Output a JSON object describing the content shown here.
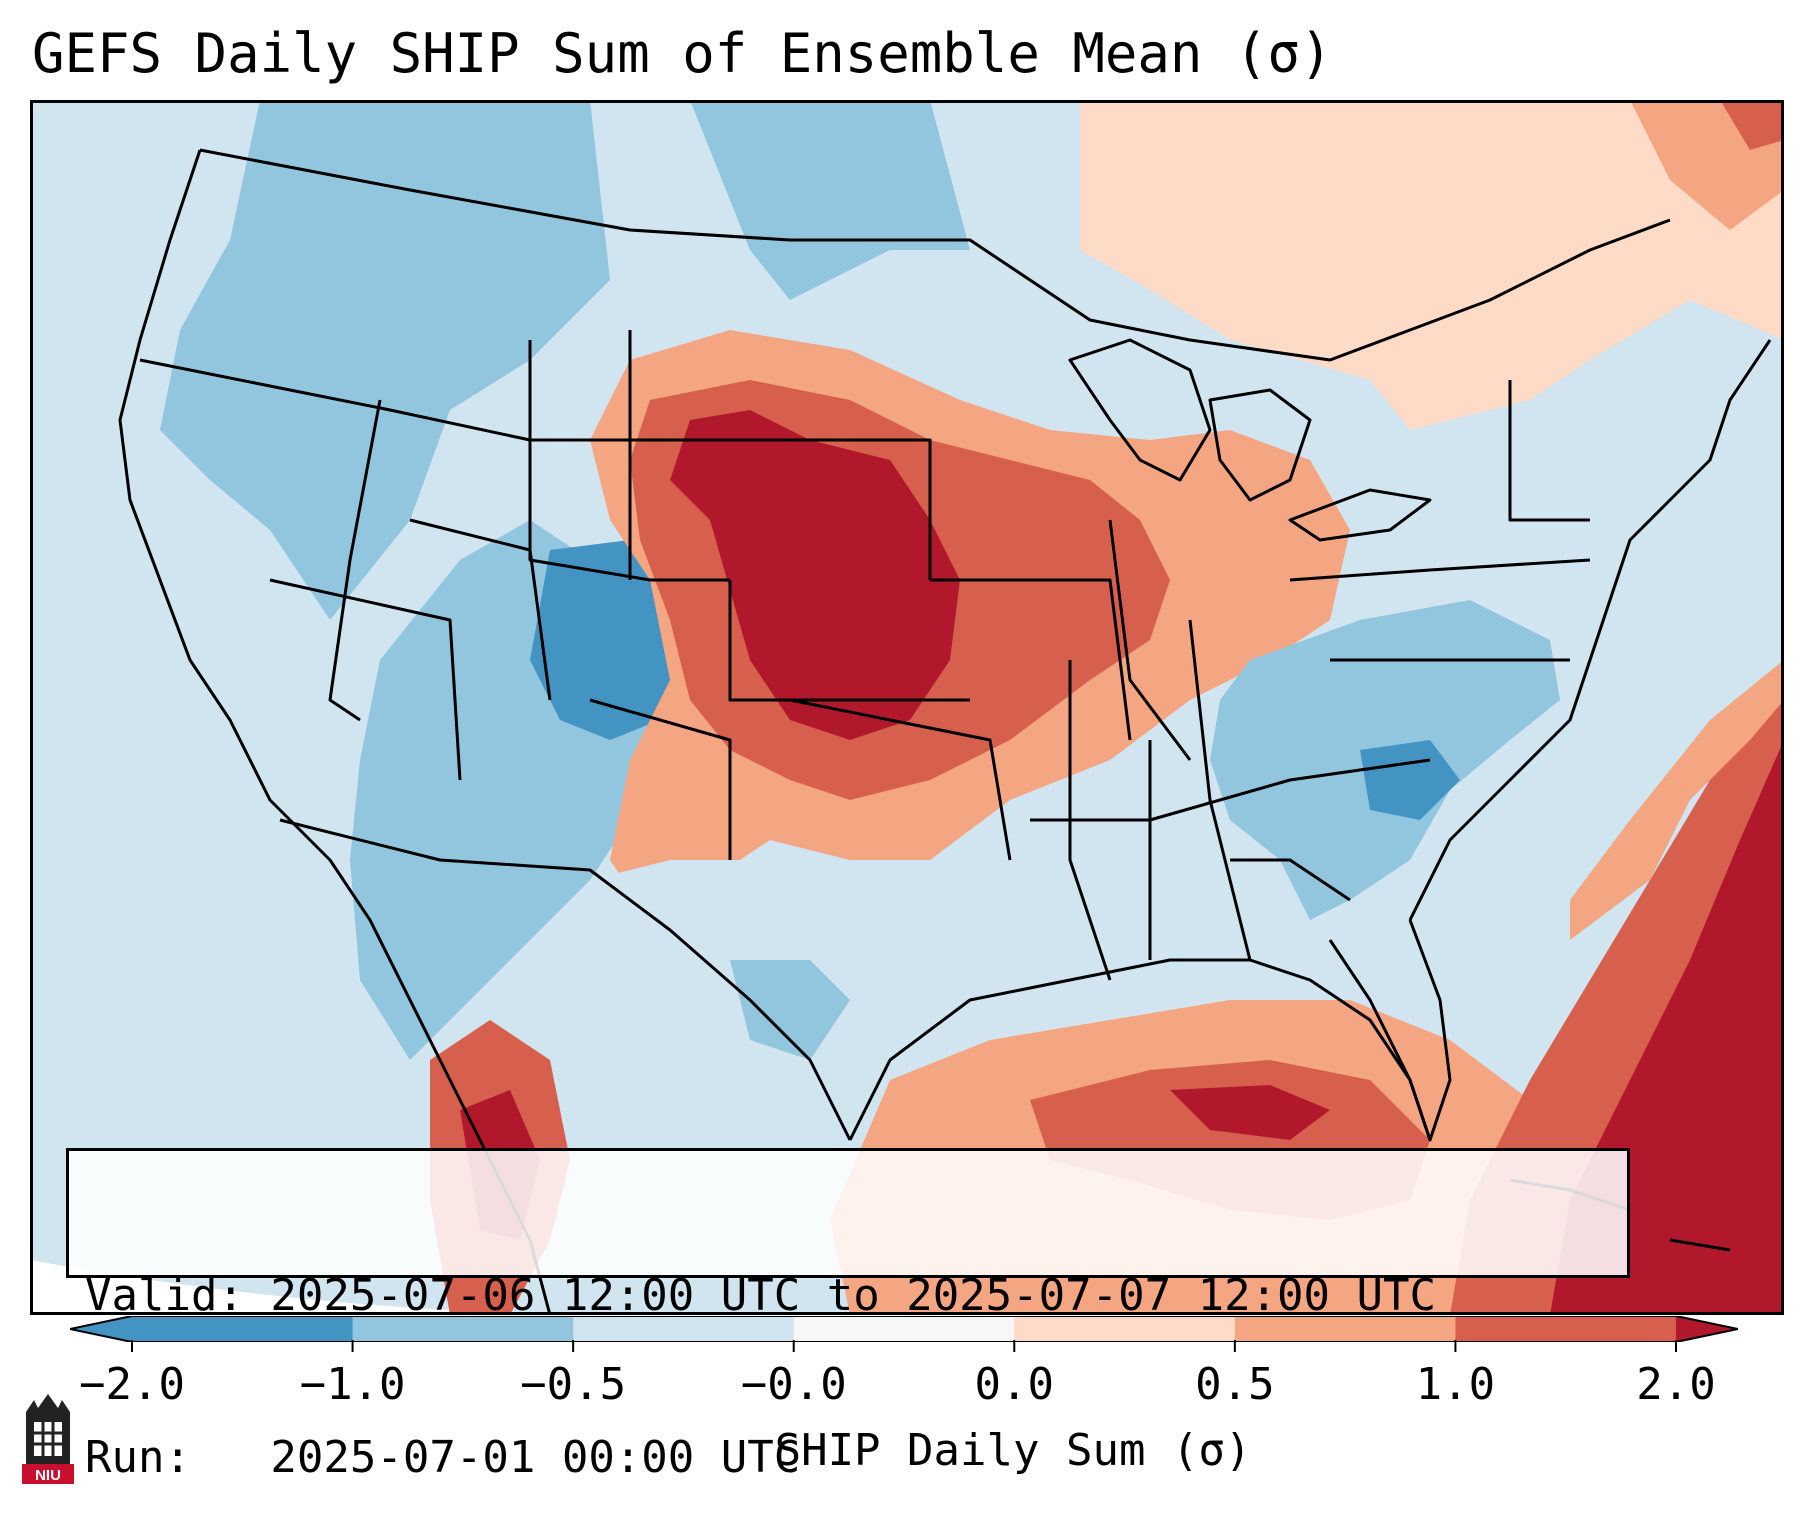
{
  "title": "GEFS Daily SHIP Sum of Ensemble Mean (σ)",
  "map": {
    "region": "Continental United States",
    "variable": "SHIP daily sum standardized anomaly",
    "units": "σ",
    "anomaly_regions": [
      {
        "name": "central-plains-warm-core",
        "category": "1.0 to 2.0"
      },
      {
        "name": "southeast-atlantic-warm",
        "category": "1.0 to 2.0"
      },
      {
        "name": "gulf-of-mexico-warm",
        "category": "0.5 to 1.0"
      },
      {
        "name": "midwest-warm",
        "category": "0.5 to 1.0"
      },
      {
        "name": "colorado-cool",
        "category": "-2.0 to -1.0"
      },
      {
        "name": "intermountain-west-cool",
        "category": "-1.0 to -0.5"
      },
      {
        "name": "carolinas-georgia-cool",
        "category": "-1.0 to -0.5"
      },
      {
        "name": "pacific-ocean-neutral",
        "category": "-0.5 to -0.0"
      }
    ]
  },
  "info": {
    "valid_line": "Valid: 2025-07-06 12:00 UTC to 2025-07-07 12:00 UTC",
    "run_line": "Run:   2025-07-01 00:00 UTC"
  },
  "colorbar": {
    "label": "SHIP Daily Sum (σ)",
    "ticks": [
      "−2.0",
      "−1.0",
      "−0.5",
      "−0.0",
      "0.0",
      "0.5",
      "1.0",
      "2.0"
    ],
    "colors": [
      "#4393c3",
      "#92c5de",
      "#d1e5f0",
      "#f7f7f7",
      "#fddbc7",
      "#f4a582",
      "#d6604d",
      "#b2182b"
    ]
  },
  "logo": {
    "text": "NIU"
  }
}
